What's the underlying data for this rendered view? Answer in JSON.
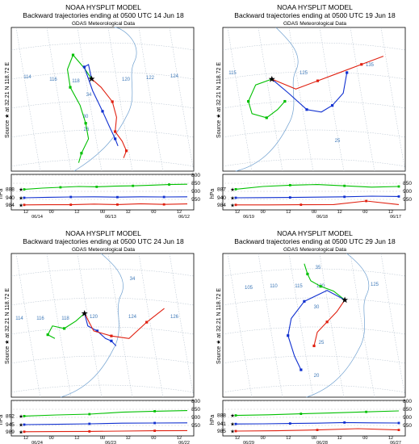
{
  "chart_data": [
    {
      "type": "line",
      "title": "NOAA HYSPLIT MODEL",
      "subtitle": "Backward trajectories ending at 0500 UTC 14 Jun 18",
      "source": "GDAS Meteorological Data",
      "source_label": "Source ★ at 32.21 N 118.72 E",
      "height_axis_label": "hPa",
      "lon_labels": [
        "114",
        "116",
        "118",
        "120",
        "122",
        "124"
      ],
      "lat_labels": [
        "34",
        "30",
        "26"
      ],
      "pressure_ticks": [
        "800",
        "850",
        "900",
        "950"
      ],
      "start_levels": [
        "888",
        "940",
        "984"
      ],
      "time_ticks": [
        "12",
        "00",
        "12",
        "00",
        "12",
        "00",
        "12"
      ],
      "date_labels": [
        "06/14",
        "06/13",
        "06/12"
      ],
      "series": [
        {
          "color": "#00c000",
          "lon": [
            118.72,
            118.2,
            117.4,
            117.0,
            117.2,
            117.9,
            118.3,
            118.5,
            118.0,
            117.8
          ],
          "lat": [
            32.21,
            33.1,
            34.2,
            33.0,
            31.5,
            30.0,
            28.5,
            27.2,
            26.0,
            25.2
          ],
          "pressure": [
            888,
            880,
            875,
            870,
            872,
            868,
            866,
            862,
            858,
            856
          ]
        },
        {
          "color": "#1030d0",
          "lon": [
            118.72,
            118.5,
            118.2,
            118.8,
            119.5,
            120.0,
            120.4,
            120.6
          ],
          "lat": [
            32.21,
            33.4,
            33.2,
            31.2,
            29.5,
            28.2,
            27.2,
            26.6
          ],
          "pressure": [
            940,
            937,
            935,
            934,
            936,
            934,
            935,
            934
          ]
        },
        {
          "color": "#e02010",
          "lon": [
            118.72,
            119.4,
            120.2,
            120.5,
            120.4,
            120.9,
            121.2,
            121.0
          ],
          "lat": [
            32.21,
            31.5,
            30.3,
            29.0,
            27.8,
            27.0,
            26.2,
            25.6
          ],
          "pressure": [
            984,
            983,
            983,
            979,
            982,
            977,
            981,
            978
          ]
        }
      ]
    },
    {
      "type": "line",
      "title": "NOAA HYSPLIT MODEL",
      "subtitle": "Backward trajectories ending at 0500 UTC 19 Jun 18",
      "source": "GDAS Meteorological Data",
      "source_label": "Source ★ at 32.21 N 118.72 E",
      "height_axis_label": "hPa",
      "lon_labels": [
        "115",
        "125",
        "135",
        "25"
      ],
      "lat_labels": [],
      "pressure_ticks": [
        "850",
        "900",
        "950"
      ],
      "start_levels": [
        "887",
        "940",
        "984"
      ],
      "time_ticks": [
        "12",
        "00",
        "12",
        "00",
        "12",
        "00",
        "12"
      ],
      "date_labels": [
        "06/19",
        "06/18",
        "06/17"
      ],
      "series": [
        {
          "color": "#00c000",
          "lon": [
            118.72,
            116.5,
            115.5,
            116.0,
            118.0,
            119.5,
            120.5
          ],
          "lat": [
            32.21,
            31.5,
            29.5,
            28.0,
            27.5,
            28.5,
            29.5
          ],
          "pressure": [
            887,
            870,
            862,
            858,
            866,
            874,
            870
          ]
        },
        {
          "color": "#1030d0",
          "lon": [
            118.72,
            121.0,
            123.5,
            125.5,
            127.0,
            128.5,
            129.0
          ],
          "lat": [
            32.21,
            30.5,
            28.5,
            28.2,
            29.0,
            30.5,
            33.0
          ],
          "pressure": [
            940,
            939,
            938,
            936,
            934,
            930,
            932
          ]
        },
        {
          "color": "#e02010",
          "lon": [
            118.72,
            122.0,
            125.0,
            128.0,
            131.0,
            134.0
          ],
          "lat": [
            32.21,
            31.0,
            32.0,
            33.0,
            34.0,
            35.0
          ],
          "pressure": [
            984,
            984,
            983,
            982,
            960,
            982
          ]
        }
      ]
    },
    {
      "type": "line",
      "title": "NOAA HYSPLIT MODEL",
      "subtitle": "Backward trajectories ending at 0500 UTC 24 Jun 18",
      "source": "GDAS Meteorological Data",
      "source_label": "Source ★ at 32.21 N 118.72 E",
      "height_axis_label": "hPa",
      "lon_labels": [
        "114",
        "116",
        "118",
        "120",
        "124",
        "126"
      ],
      "lat_labels": [
        "34"
      ],
      "pressure_ticks": [
        "800",
        "850",
        "900",
        "950"
      ],
      "start_levels": [
        "892",
        "945",
        "989"
      ],
      "time_ticks": [
        "12",
        "00",
        "12",
        "00",
        "12",
        "00",
        "12"
      ],
      "date_labels": [
        "06/24",
        "06/23",
        "06/22"
      ],
      "series": [
        {
          "color": "#00c000",
          "lon": [
            118.72,
            118.0,
            117.0,
            116.0,
            115.6,
            116.2
          ],
          "lat": [
            32.21,
            31.6,
            31.0,
            31.2,
            30.5,
            30.2
          ],
          "pressure": [
            892,
            885,
            880,
            868,
            862,
            858
          ]
        },
        {
          "color": "#1030d0",
          "lon": [
            118.72,
            119.0,
            119.8,
            120.5,
            121.0,
            121.4
          ],
          "lat": [
            32.21,
            31.2,
            30.8,
            30.2,
            30.0,
            29.6
          ],
          "pressure": [
            945,
            943,
            940,
            936,
            935,
            934
          ]
        },
        {
          "color": "#e02010",
          "lon": [
            118.72,
            119.5,
            121.0,
            122.5,
            124.0,
            125.5
          ],
          "lat": [
            32.21,
            30.8,
            30.4,
            30.2,
            31.5,
            32.6
          ],
          "pressure": [
            989,
            988,
            987,
            985,
            983,
            982
          ]
        }
      ]
    },
    {
      "type": "line",
      "title": "NOAA HYSPLIT MODEL",
      "subtitle": "Backward trajectories ending at 0500 UTC 29 Jun 18",
      "source": "GDAS Meteorological Data",
      "source_label": "Source ★ at 32.21 N 118.72 E",
      "height_axis_label": "hPa",
      "lon_labels": [
        "105",
        "110",
        "115",
        "120",
        "125"
      ],
      "lat_labels": [
        "35",
        "30",
        "25",
        "20"
      ],
      "pressure_ticks": [
        "800",
        "850",
        "900",
        "950"
      ],
      "start_levels": [
        "888",
        "941",
        "985"
      ],
      "time_ticks": [
        "12",
        "00",
        "12",
        "00",
        "12",
        "00",
        "12"
      ],
      "date_labels": [
        "06/29",
        "06/28",
        "06/27"
      ],
      "series": [
        {
          "color": "#00c000",
          "lon": [
            118.72,
            117.0,
            115.0,
            113.5,
            113.0,
            112.5
          ],
          "lat": [
            32.21,
            33.5,
            34.2,
            35.0,
            36.0,
            37.5
          ],
          "pressure": [
            888,
            884,
            878,
            872,
            866,
            860
          ]
        },
        {
          "color": "#1030d0",
          "lon": [
            118.72,
            116.0,
            112.5,
            110.5,
            110.0,
            111.0,
            112.0
          ],
          "lat": [
            32.21,
            33.6,
            32.0,
            29.5,
            27.0,
            24.0,
            22.0
          ],
          "pressure": [
            941,
            940,
            938,
            936,
            932,
            934,
            935
          ]
        },
        {
          "color": "#e02010",
          "lon": [
            118.72,
            117.5,
            116.0,
            114.5,
            114.0
          ],
          "lat": [
            32.21,
            30.5,
            29.0,
            27.5,
            25.5
          ],
          "pressure": [
            985,
            983,
            978,
            970,
            978
          ]
        }
      ]
    }
  ]
}
